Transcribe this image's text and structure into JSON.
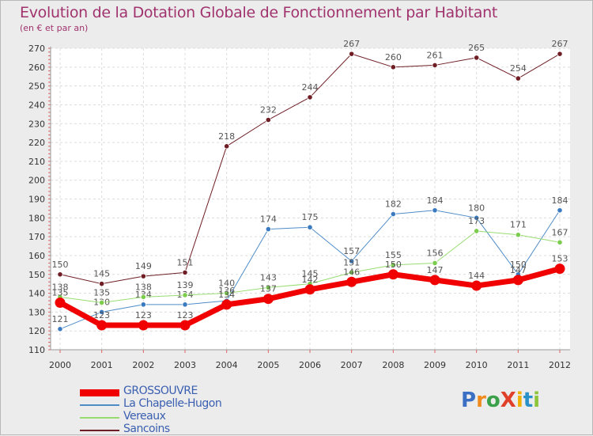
{
  "title": "Evolution de la Dotation Globale de Fonctionnement par Habitant",
  "subtitle": "(en € et par an)",
  "logo": {
    "text": "ProXiti",
    "letters": [
      "P",
      "r",
      "o",
      "X",
      "i",
      "t",
      "i"
    ],
    "colors": [
      "#3a6fc4",
      "#f08a1c",
      "#3aa04a",
      "#e0402a",
      "#f0b000",
      "#2a90c8",
      "#8cc43a"
    ]
  },
  "chart_data": {
    "type": "line",
    "x": [
      "2000",
      "2001",
      "2002",
      "2003",
      "2004",
      "2005",
      "2006",
      "2007",
      "2008",
      "2009",
      "2010",
      "2011",
      "2012"
    ],
    "ylim": [
      110,
      270
    ],
    "yticks": [
      110,
      120,
      130,
      140,
      150,
      160,
      170,
      180,
      190,
      200,
      210,
      220,
      230,
      240,
      250,
      260,
      270
    ],
    "grid": true,
    "legend_position": "bottom-left",
    "series": [
      {
        "name": "Sancoins",
        "color": "#6e1e24",
        "point_color": "#6e1e24",
        "width": 1,
        "values": [
          150,
          145,
          149,
          151,
          218,
          232,
          244,
          267,
          260,
          261,
          265,
          254,
          267
        ],
        "labels": [
          "150",
          "145",
          "149",
          "151",
          "218",
          "232",
          "244",
          "267",
          "260",
          "261",
          "265",
          "254",
          "267"
        ]
      },
      {
        "name": "La Chapelle-Hugon",
        "color": "#4e8cc8",
        "point_color": "#3a7ac0",
        "width": 1,
        "values": [
          121,
          130,
          134,
          134,
          136,
          174,
          175,
          157,
          182,
          184,
          180,
          150,
          184
        ],
        "labels": [
          "121",
          "130",
          "134",
          "134",
          "136",
          "174",
          "175",
          "157",
          "182",
          "184",
          "180",
          "150",
          "184"
        ]
      },
      {
        "name": "Vereaux",
        "color": "#98dc70",
        "point_color": "#7ccc4e",
        "width": 1,
        "values": [
          138,
          135,
          138,
          139,
          140,
          143,
          145,
          151,
          155,
          156,
          173,
          171,
          167
        ],
        "labels": [
          "138",
          "135",
          "138",
          "139",
          "140",
          "143",
          "145",
          "151",
          "155",
          "156",
          "173",
          "171",
          "167"
        ]
      },
      {
        "name": "GROSSOUVRE",
        "color": "#f00000",
        "point_color": "#f00000",
        "width": 7,
        "values": [
          135,
          123,
          123,
          123,
          134,
          137,
          142,
          146,
          150,
          147,
          144,
          147,
          153
        ],
        "labels": [
          "135",
          "123",
          "123",
          "123",
          "134",
          "137",
          "142",
          "146",
          "150",
          "147",
          "144",
          "147",
          "153"
        ]
      }
    ],
    "legend_order": [
      "GROSSOUVRE",
      "La Chapelle-Hugon",
      "Vereaux",
      "Sancoins"
    ]
  }
}
